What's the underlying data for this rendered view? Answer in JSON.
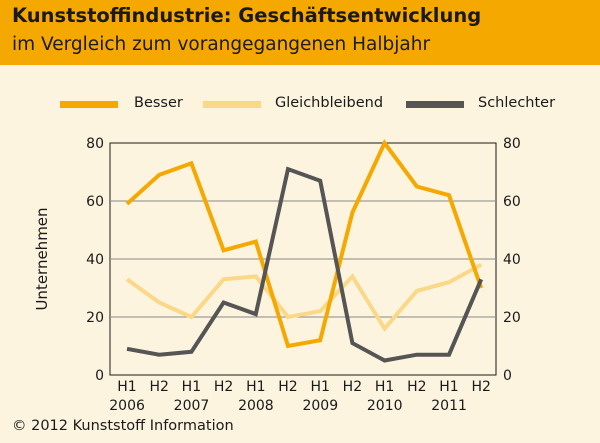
{
  "header": {
    "title": "Kunststoffindustrie: Geschäftsentwicklung",
    "subtitle": "im Vergleich zum vorangegangenen Halbjahr"
  },
  "footer": {
    "copyright": "© 2012 Kunststoff Information"
  },
  "colors": {
    "header_bg": "#f5a800",
    "background": "#fdf4df",
    "besser": "#f5a800",
    "gleichbleibend": "#fbd888",
    "schlechter": "#555555",
    "grid": "#888888"
  },
  "chart_data": {
    "type": "line",
    "ylabel": "Unternehmen",
    "ylim": [
      0,
      80
    ],
    "yticks": [
      0,
      20,
      40,
      60,
      80
    ],
    "grid": "horizontal",
    "legend_position": "top",
    "x_half_labels": [
      "H1",
      "H2",
      "H1",
      "H2",
      "H1",
      "H2",
      "H1",
      "H2",
      "H1",
      "H2",
      "H1",
      "H2"
    ],
    "x_year_labels": [
      "2006",
      "2007",
      "2008",
      "2009",
      "2010",
      "2011"
    ],
    "x": [
      "2006 H1",
      "2006 H2",
      "2007 H1",
      "2007 H2",
      "2008 H1",
      "2008 H2",
      "2009 H1",
      "2009 H2",
      "2010 H1",
      "2010 H2",
      "2011 H1",
      "2011 H2"
    ],
    "series": [
      {
        "name": "Besser",
        "values": [
          59,
          69,
          73,
          43,
          46,
          10,
          12,
          56,
          80,
          65,
          62,
          30
        ]
      },
      {
        "name": "Gleichbleibend",
        "values": [
          33,
          25,
          20,
          33,
          34,
          20,
          22,
          34,
          16,
          29,
          32,
          38
        ]
      },
      {
        "name": "Schlechter",
        "values": [
          9,
          7,
          8,
          25,
          21,
          71,
          67,
          11,
          5,
          7,
          7,
          33
        ]
      }
    ]
  }
}
